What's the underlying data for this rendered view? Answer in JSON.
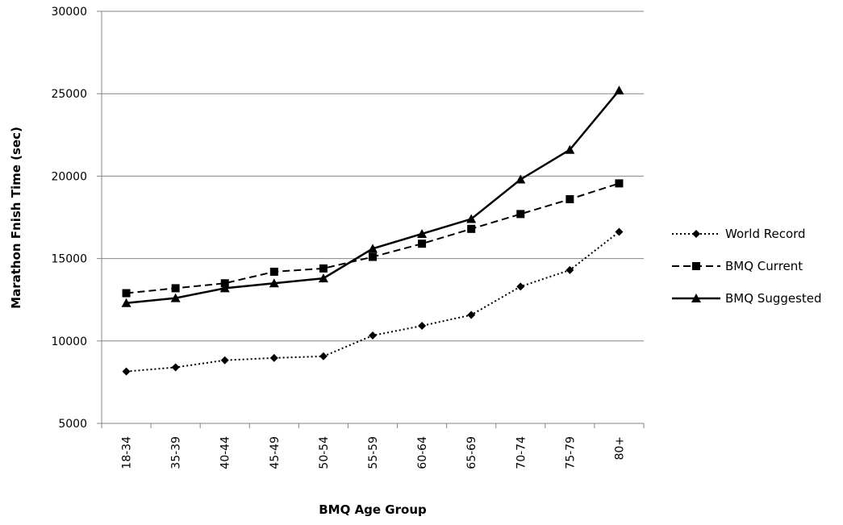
{
  "chart_data": {
    "type": "line",
    "title": "",
    "xlabel": "BMQ Age Group",
    "ylabel": "Marathon Fnish Time (sec)",
    "categories": [
      "18-34",
      "35-39",
      "40-44",
      "45-49",
      "50-54",
      "55-59",
      "60-64",
      "65-69",
      "70-74",
      "75-79",
      "80+"
    ],
    "ylim": [
      5000,
      30000
    ],
    "yticks": [
      5000,
      10000,
      15000,
      20000,
      25000,
      30000
    ],
    "grid": "horizontal",
    "legend_position": "right",
    "series": [
      {
        "name": "World Record",
        "line_style": "dotted",
        "marker": "diamond",
        "color": "#000000",
        "values": [
          8150,
          8400,
          8830,
          8970,
          9070,
          10330,
          10920,
          11580,
          13300,
          14300,
          16620
        ]
      },
      {
        "name": "BMQ Current",
        "line_style": "dashed",
        "marker": "square",
        "color": "#000000",
        "values": [
          12900,
          13200,
          13500,
          14200,
          14400,
          15100,
          15900,
          16800,
          17700,
          18600,
          19560
        ]
      },
      {
        "name": "BMQ Suggested",
        "line_style": "solid",
        "marker": "triangle",
        "color": "#000000",
        "values": [
          12300,
          12600,
          13200,
          13500,
          13800,
          15600,
          16500,
          17400,
          19800,
          21600,
          25200
        ]
      }
    ]
  }
}
